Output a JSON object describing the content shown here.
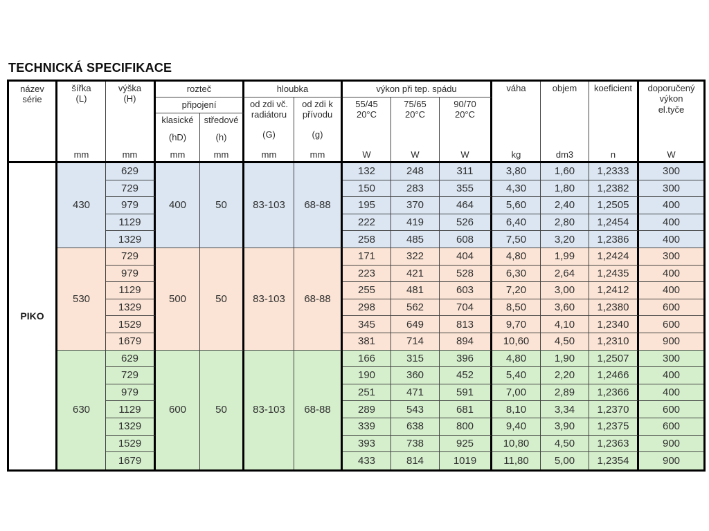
{
  "title": "TECHNICKÁ SPECIFIKACE",
  "series_label": "PIKO",
  "colors": {
    "group_430_bg": "#dbe6f2",
    "group_530_bg": "#fbe4d5",
    "group_630_bg": "#d5efcc",
    "thin_border": "#424242",
    "thick_border": "#000000"
  },
  "header": {
    "nazev_serie": "název\nsérie",
    "sirka": {
      "label": "šířka\n(L)",
      "unit": "mm"
    },
    "vyska": {
      "label": "výška\n(H)",
      "unit": "mm"
    },
    "roztec": {
      "group": "rozteč",
      "sub": "připojení",
      "klasicke": {
        "name": "klasické",
        "symbol": "(hD)",
        "unit": "mm"
      },
      "stredove": {
        "name": "středové",
        "symbol": "(h)",
        "unit": "mm"
      }
    },
    "hloubka": {
      "group": "hloubka",
      "od_zdi_radiator": {
        "name": "od zdi vč.\nradiátoru",
        "symbol": "(G)",
        "unit": "mm"
      },
      "od_zdi_privod": {
        "name": "od zdi k\npřívodu",
        "symbol": "(g)",
        "unit": "mm"
      }
    },
    "vykon": {
      "group": "výkon při tep. spádu",
      "c1": {
        "name": "55/45\n20°C",
        "unit": "W"
      },
      "c2": {
        "name": "75/65\n20°C",
        "unit": "W"
      },
      "c3": {
        "name": "90/70\n20°C",
        "unit": "W"
      }
    },
    "vaha": {
      "label": "váha",
      "unit": "kg"
    },
    "objem": {
      "label": "objem",
      "unit": "dm3"
    },
    "koeficient": {
      "label": "koeficient",
      "unit": "n"
    },
    "doporuceny": {
      "label": "doporučený\nvýkon\nel.tyče",
      "unit": "W"
    }
  },
  "groups": [
    {
      "width_mm": "430",
      "roztec_klasicke": "400",
      "roztec_stredove": "50",
      "hloubka_G": "83-103",
      "hloubka_g": "68-88",
      "bg": "#dbe6f2",
      "rows": [
        {
          "height_mm": "629",
          "values": [
            "132",
            "248",
            "311",
            "3,80",
            "1,60",
            "1,2333",
            "300"
          ]
        },
        {
          "height_mm": "729",
          "values": [
            "150",
            "283",
            "355",
            "4,30",
            "1,80",
            "1,2382",
            "300"
          ]
        },
        {
          "height_mm": "979",
          "values": [
            "195",
            "370",
            "464",
            "5,60",
            "2,40",
            "1,2505",
            "400"
          ]
        },
        {
          "height_mm": "1129",
          "values": [
            "222",
            "419",
            "526",
            "6,40",
            "2,80",
            "1,2454",
            "400"
          ]
        },
        {
          "height_mm": "1329",
          "values": [
            "258",
            "485",
            "608",
            "7,50",
            "3,20",
            "1,2386",
            "400"
          ]
        }
      ]
    },
    {
      "width_mm": "530",
      "roztec_klasicke": "500",
      "roztec_stredove": "50",
      "hloubka_G": "83-103",
      "hloubka_g": "68-88",
      "bg": "#fbe4d5",
      "rows": [
        {
          "height_mm": "729",
          "values": [
            "171",
            "322",
            "404",
            "4,80",
            "1,99",
            "1,2424",
            "300"
          ]
        },
        {
          "height_mm": "979",
          "values": [
            "223",
            "421",
            "528",
            "6,30",
            "2,64",
            "1,2435",
            "400"
          ]
        },
        {
          "height_mm": "1129",
          "values": [
            "255",
            "481",
            "603",
            "7,20",
            "3,00",
            "1,2412",
            "400"
          ]
        },
        {
          "height_mm": "1329",
          "values": [
            "298",
            "562",
            "704",
            "8,50",
            "3,60",
            "1,2380",
            "600"
          ]
        },
        {
          "height_mm": "1529",
          "values": [
            "345",
            "649",
            "813",
            "9,70",
            "4,10",
            "1,2340",
            "600"
          ]
        },
        {
          "height_mm": "1679",
          "values": [
            "381",
            "714",
            "894",
            "10,60",
            "4,50",
            "1,2310",
            "900"
          ]
        }
      ]
    },
    {
      "width_mm": "630",
      "roztec_klasicke": "600",
      "roztec_stredove": "50",
      "hloubka_G": "83-103",
      "hloubka_g": "68-88",
      "bg": "#d5efcc",
      "rows": [
        {
          "height_mm": "629",
          "values": [
            "166",
            "315",
            "396",
            "4,80",
            "1,90",
            "1,2507",
            "300"
          ]
        },
        {
          "height_mm": "729",
          "values": [
            "190",
            "360",
            "452",
            "5,40",
            "2,20",
            "1,2466",
            "400"
          ]
        },
        {
          "height_mm": "979",
          "values": [
            "251",
            "471",
            "591",
            "7,00",
            "2,89",
            "1,2366",
            "400"
          ]
        },
        {
          "height_mm": "1129",
          "values": [
            "289",
            "543",
            "681",
            "8,10",
            "3,34",
            "1,2370",
            "600"
          ]
        },
        {
          "height_mm": "1329",
          "values": [
            "339",
            "638",
            "800",
            "9,40",
            "3,90",
            "1,2375",
            "600"
          ]
        },
        {
          "height_mm": "1529",
          "values": [
            "393",
            "738",
            "925",
            "10,80",
            "4,50",
            "1,2363",
            "900"
          ]
        },
        {
          "height_mm": "1679",
          "values": [
            "433",
            "814",
            "1019",
            "11,80",
            "5,00",
            "1,2354",
            "900"
          ]
        }
      ]
    }
  ]
}
